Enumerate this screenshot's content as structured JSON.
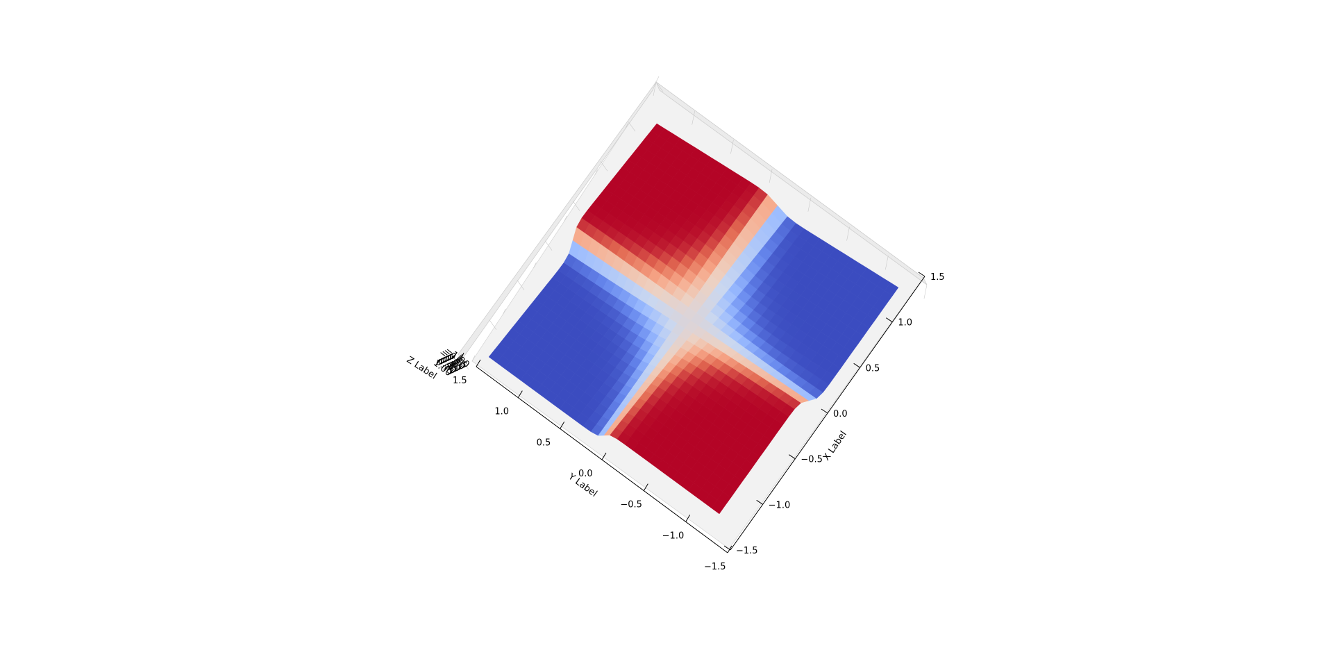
{
  "chart_data": {
    "type": "surface3d",
    "title": "",
    "xlabel": "X Label",
    "ylabel": "Y Label",
    "zlabel": "Z Label",
    "xlim": [
      -1.5,
      1.5
    ],
    "ylim": [
      -1.5,
      1.5
    ],
    "zlim": [
      -1.0,
      1.0
    ],
    "x_ticks": [
      -1.5,
      -1.0,
      -0.5,
      0.0,
      0.5,
      1.0,
      1.5
    ],
    "y_ticks": [
      -1.5,
      -1.0,
      -0.5,
      0.0,
      0.5,
      1.0,
      1.5
    ],
    "x_tick_labels": [
      "−1.5",
      "−1.0",
      "−0.5",
      "0.0",
      "0.5",
      "1.0",
      "1.5"
    ],
    "y_tick_labels": [
      "−1.5",
      "−1.0",
      "−0.5",
      "0.0",
      "0.5",
      "1.0",
      "1.5"
    ],
    "z_ticks": [
      -1.0,
      -0.75,
      -0.5,
      -0.25,
      0.0,
      0.25,
      0.5,
      0.75,
      1.0
    ],
    "z_tick_labels": [
      "−1.00",
      "−0.75",
      "−0.50",
      "−0.25",
      "0.00",
      "0.25",
      "0.50",
      "0.75",
      "1.00"
    ],
    "colormap": "coolwarm",
    "colormap_stops": [
      "#3b4cc0",
      "#6788ee",
      "#9abbff",
      "#c9d7f0",
      "#edd1c2",
      "#f7a889",
      "#e26952",
      "#b40426"
    ],
    "surface": {
      "function": "tanh(20*x*y) sign-like saddle",
      "grid_size": 30,
      "x_range": [
        -1.5,
        1.5
      ],
      "y_range": [
        -1.5,
        1.5
      ]
    },
    "grid": true
  }
}
